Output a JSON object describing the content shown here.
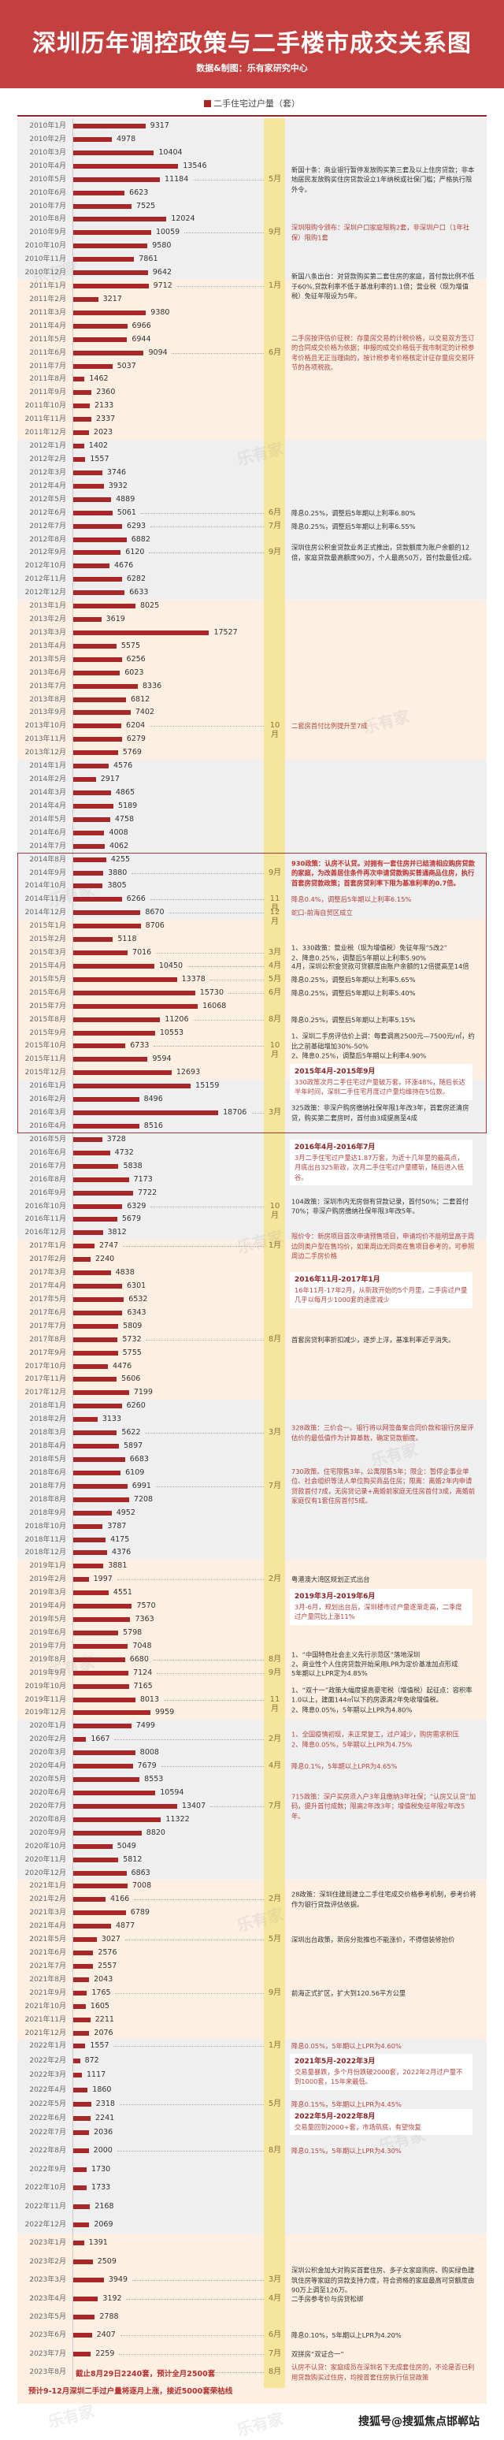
{
  "header": {
    "title": "深圳历年调控政策与二手楼市成交关系图",
    "subtitle": "数据&制图：乐有家研究中心"
  },
  "chart_data": {
    "type": "bar",
    "orientation": "horizontal",
    "title": "深圳历年调控政策与二手楼市成交关系图",
    "legend": "二手住宅过户量（套）",
    "legend_placement": "top-center",
    "colors": {
      "bar": "#a8282a",
      "header": "#c4403f"
    },
    "years": [
      "2010",
      "2011",
      "2012",
      "2013",
      "2014",
      "2015",
      "2016",
      "2017",
      "2018",
      "2019",
      "2020",
      "2021",
      "2022",
      "2023"
    ],
    "values": {
      "2010": [
        9317,
        4978,
        10404,
        13546,
        11184,
        6623,
        7525,
        12024,
        10059,
        9580,
        7861,
        9642
      ],
      "2011": [
        9712,
        3217,
        9380,
        6966,
        6944,
        9094,
        5037,
        1462,
        2360,
        2133,
        2337,
        2023
      ],
      "2012": [
        1402,
        1557,
        3746,
        3932,
        4889,
        5061,
        6293,
        6882,
        6120,
        4676,
        6282,
        6633
      ],
      "2013": [
        8025,
        3619,
        17527,
        5575,
        6256,
        6023,
        8336,
        6812,
        7402,
        6204,
        6279,
        5769
      ],
      "2014": [
        4576,
        2917,
        4865,
        5189,
        4758,
        4008,
        4062,
        4255,
        3880,
        3805,
        6266,
        8670
      ],
      "2015": [
        8706,
        5118,
        7016,
        10450,
        13378,
        15730,
        16068,
        11206,
        10553,
        6733,
        9594,
        12693
      ],
      "2016": [
        15159,
        8496,
        18706,
        8516,
        3728,
        4732,
        5838,
        7173,
        7722,
        6329,
        5679,
        3812
      ],
      "2017": [
        2747,
        2240,
        4838,
        6301,
        6532,
        6343,
        5809,
        5732,
        5755,
        4476,
        5606,
        7199
      ],
      "2018": [
        6260,
        3133,
        5622,
        5897,
        6683,
        6109,
        6991,
        7208,
        4952,
        3787,
        4175,
        4376
      ],
      "2019": [
        3881,
        1997,
        4551,
        7570,
        7363,
        5798,
        7048,
        6680,
        7124,
        7165,
        8013,
        9959
      ],
      "2020": [
        7499,
        1667,
        8008,
        7679,
        8553,
        10594,
        13407,
        11322,
        8820,
        5049,
        5812,
        6863
      ],
      "2021": [
        7008,
        4166,
        6789,
        4877,
        3027,
        2576,
        2557,
        2043,
        1765,
        1605,
        2211,
        2076
      ],
      "2022": [
        1557,
        872,
        1117,
        1860,
        2318,
        2241,
        2036,
        2000,
        1730,
        1733,
        2168,
        2069
      ],
      "2023": [
        1391,
        2509,
        3949,
        3192,
        2788,
        2407,
        2259,
        null
      ]
    },
    "last_month_note": "截止8月29日2240套，预计全月2500套",
    "forecast": "预计9-12月深圳二手过户量将逐月上涨，接近5000套荣枯线"
  },
  "annotations": [
    {
      "date": "2010-05",
      "month": "5月",
      "style": "dark",
      "text": "新国十条：商业银行暂停发放购买第三套及以上住房贷款；非本地居民发放购买住房贷款设立1年纳税或社保门槛；严格执行限外令。"
    },
    {
      "date": "2010-09",
      "month": "9月",
      "style": "red",
      "text": "深圳限购令颁布：深圳户口家庭限购2套，非深圳户口（1年社保）限购1套"
    },
    {
      "date": "2011-01",
      "month": "1月",
      "style": "dark",
      "text": "新国八条出台：对贷款购买第二套住房的家庭，首付款比例不低于60%,贷款利率不低于基准利率的1.1倍；营业税（现为增值税）免征年限设为5年。"
    },
    {
      "date": "2011-06",
      "month": "6月",
      "style": "red",
      "text": "二手房按评估价征税：存量房交易的计税价格，以交易双方签订的合同成交价格为依据；申报的成交价格低于我市制定的计税参考价格且无正当理由的，按计税参考价格核定计征存量房交易环节的各项税款。"
    },
    {
      "date": "2012-06",
      "month": "6月",
      "style": "dark",
      "text": "降息0.25%，调整后5年期以上利率6.80%"
    },
    {
      "date": "2012-07",
      "month": "7月",
      "style": "dark",
      "text": "降息0.25%，调整后5年期以上利率6.55%"
    },
    {
      "date": "2012-09",
      "month": "9月",
      "style": "dark",
      "text": "深圳住房公积金贷款业务正式推出，贷款额度为账户余额的12倍，家庭贷款最高额度90万，个人最高50万，首付款最低2成。"
    },
    {
      "date": "2013-10",
      "month": "10月",
      "style": "red",
      "text": "二套房首付比例提升至7成"
    },
    {
      "date": "2014-09",
      "month": "9月",
      "style": "bold",
      "text": "930政策：认房不认贷。对拥有一套住房并已结清相应购房贷款的家庭，为改善居住条件再次申请贷款购买普通商品住房，执行首套房贷款政策；首套房贷利率下限为基准利率的0.7倍。"
    },
    {
      "date": "2014-11",
      "month": "11月",
      "style": "red",
      "text": "降息0.4%，调整后5年期以上利率6.15%"
    },
    {
      "date": "2014-12",
      "month": "12月",
      "style": "red",
      "text": "蛇口-前海自贸区成立"
    },
    {
      "date": "2015-03",
      "month": "3月",
      "style": "dark",
      "text": "1、330政策：营业税（现为增值税）免征年限“5改2”\n2、降息0.25%，调整后5年期以上利率5.90%"
    },
    {
      "date": "2015-04",
      "month": "4月",
      "style": "dark",
      "text": "4月，深圳公积金贷款可贷额度由账户余额的12倍提高至14倍"
    },
    {
      "date": "2015-05",
      "month": "5月",
      "style": "dark",
      "text": "降息0.25%，调整后5年期以上利率5.65%"
    },
    {
      "date": "2015-06",
      "month": "6月",
      "style": "dark",
      "text": "降息0.25%，调整后5年期以上利率5.40%"
    },
    {
      "date": "2015-08",
      "month": "8月",
      "style": "dark",
      "text": "降息0.25%，调整后5年期以上利率5.15%"
    },
    {
      "date": "2015-10",
      "month": "10月",
      "style": "dark",
      "text": "1、深圳二手房评估价上调：每套调高2500元—7500元/㎡，约比之前基础增加30%-50%\n2、降息0.25%，调整后5年期以上利率4.90%"
    },
    {
      "date": "2016-03",
      "month": "3月",
      "style": "dark",
      "text": "325政策：非深户购房缴纳社保年限1年改3年，首套房还清房贷，购买第二套房时，首付由3成提高至4成"
    },
    {
      "date": "2016-10",
      "month": "10月",
      "style": "dark",
      "text": "104政策：深圳市内无房但有贷款记录，首付50%；二套首付70%；非深户购房缴纳社保年限3年改5年。"
    },
    {
      "date": "2017-01",
      "month": "1月",
      "style": "red",
      "text": "限价令：新房项目首次申请预售项目，申请均价不能明显高于周边同类户型在售均价，如果周边无同类在售项目参考的，可参照周边二手房价格"
    },
    {
      "date": "2017-08",
      "month": "8月",
      "style": "dark",
      "text": "首套房贷利率折扣减少，逐步上浮，基准利率近乎消失。"
    },
    {
      "date": "2018-03",
      "month": "3月",
      "style": "red",
      "text": "328政策：三价合一。银行将以网签备案合同价款和银行房屋评估价的最低值作为计算基数，确定贷款额度。"
    },
    {
      "date": "2018-07",
      "month": "7月",
      "style": "red",
      "text": "730政策。住宅限售3年，公寓限售5年；限企：暂停企事业单位、社会组织等法人单位购买商品住房；限离：离婚2年内申请贷款首付7成，无房贷记录+离婚前家庭无住房首付3成，离婚前家庭仅有1套住房首付5成。"
    },
    {
      "date": "2019-02",
      "month": "2月",
      "style": "dark",
      "text": "粤港澳大湾区规划正式出台"
    },
    {
      "date": "2019-08",
      "month": "8月",
      "style": "dark",
      "text": "1、“中国特色社会主义先行示范区”落地深圳\n2、商业性个人住房贷款开始采用LPR为定价基准加点形成"
    },
    {
      "date": "2019-09",
      "month": "9月",
      "style": "dark",
      "text": "5年期以上LPR定为4.85%"
    },
    {
      "date": "2019-11",
      "month": "11月",
      "style": "dark",
      "text": "1、“双十一”政策大幅度提高豪宅税（增值税）起征点：容积率1.0以上，建面144㎡以下的房源满2年免收增值税。\n2、降息0.05%，5年期以上LPR为4.80%"
    },
    {
      "date": "2020-02",
      "month": "2月",
      "style": "red",
      "text": "1、全国疫情初现，未正常复工，过户减少，购房需求积压\n2、降息0.05%，5年期以上LPR为4.75%"
    },
    {
      "date": "2020-04",
      "month": "4月",
      "style": "red",
      "text": "降息0.1%，5年期以上LPR为4.65%"
    },
    {
      "date": "2020-07",
      "month": "7月",
      "style": "red",
      "text": "715政策：深户买房须入户3年且缴纳3年社保；“认房又认贷”加码，提升首付成数；限离2年改3年；增值税免征年限2年改5年。"
    },
    {
      "date": "2021-02",
      "month": "2月",
      "style": "dark",
      "text": "28政策：深圳住建局建立二手住宅成交价格参考机制，参考价将作为银行贷款评估依据。"
    },
    {
      "date": "2021-05",
      "month": "5月",
      "style": "dark",
      "text": "深圳出台政策，新房分批推也不能涨价，不得借装修抬价"
    },
    {
      "date": "2021-09",
      "month": "9月",
      "style": "dark",
      "text": "前海正式扩区，扩大到120.56平方公里"
    },
    {
      "date": "2022-01",
      "month": "1月",
      "style": "red",
      "text": "降息0.05%，5年期以上LPR为4.60%"
    },
    {
      "date": "2022-05",
      "month": "5月",
      "style": "red",
      "text": "降息0.15%，5年期以上LPR为4.45%"
    },
    {
      "date": "2022-08",
      "month": "8月",
      "style": "red",
      "text": "降息0.15%，5年期以上LPR为4.30%"
    },
    {
      "date": "2023-03",
      "month": "3月",
      "style": "dark",
      "text": "深圳公积金加大对购买首套住房、多子女家庭购房、购买绿色建筑住房等家庭的贷款支持力度，符合资格的家庭最高可贷额度由90万上调至126万。"
    },
    {
      "date": "2023-04",
      "month": "4月",
      "style": "dark",
      "text": "二手房参考价与房贷松绑"
    },
    {
      "date": "2023-06",
      "month": "6月",
      "style": "dark",
      "text": "降息0.10%，5年期以上LPR为4.20%"
    },
    {
      "date": "2023-07",
      "month": "7月",
      "style": "dark",
      "text": "双拼房“双证合一”"
    },
    {
      "date": "2023-08",
      "month": "8月",
      "style": "red",
      "text": "认房不认贷：家庭成员在深圳名下无成套住房的，不论是否已利用贷款购买过住房，均按首套住房执行信贷政策"
    }
  ],
  "highlights": [
    {
      "title": "2015年4月-2015年9月",
      "text": "330政策次月二手住宅过户量破万套，环涨48%，随后长达半年时间，深圳二手住宅月度过户量均维持在5位数。"
    },
    {
      "title": "2016年4月-2016年7月",
      "text": "3月二手住宅过户量达1.87万套，为近十几年里的最高点，月底出台325新政，次月二手住宅过户量腰斩，随后进入低谷。"
    },
    {
      "title": "2016年11月-2017年1月",
      "text": "16年11月-17年2月，从新政开始的5个月里，二手房过户量几乎以每月少1000套的速度减少"
    },
    {
      "title": "2019年3月-2019年6月",
      "text": "3月-6月，规划出台后，深圳楼市过户量逐渐走高，二季度过户量同比上涨11%"
    },
    {
      "title": "2021年5月-2022年3月",
      "text": "交易量暴跌，多个月份跌破2000套，2022年2月过户量不到1000套，15年来最低。"
    },
    {
      "title": "2022年5月-2022年8月",
      "text": "交易量回到2000+套，市场筑底，有望恢复"
    }
  ],
  "watermark": "乐有家",
  "source_watermark": "搜狐号@搜狐焦点邯郸站"
}
